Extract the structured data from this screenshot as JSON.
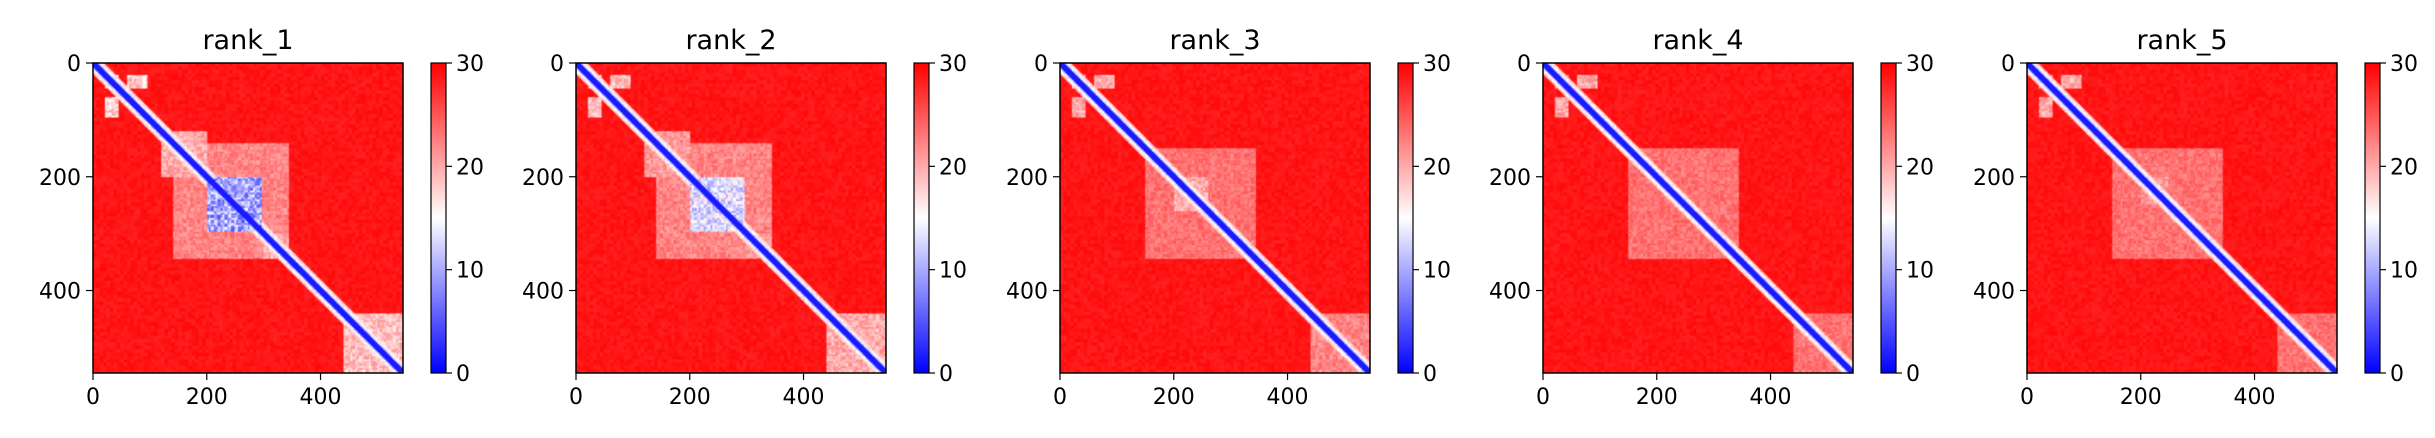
{
  "chart_data": [
    {
      "type": "heatmap",
      "title": "rank_1",
      "xlabel": "",
      "ylabel": "",
      "xlim": [
        0,
        545
      ],
      "ylim": [
        545,
        0
      ],
      "x_ticks": [
        0,
        200,
        400
      ],
      "y_ticks": [
        0,
        200,
        400
      ],
      "colorbar": {
        "min": 0,
        "max": 30,
        "ticks": [
          0,
          10,
          20,
          30
        ],
        "colors": [
          "#0000ff",
          "#ffffff",
          "#ff0000"
        ]
      },
      "n_residues": 545,
      "blue_blocks": [
        [
          200,
          295,
          200,
          295,
          0.9
        ],
        [
          20,
          45,
          20,
          45,
          0.6
        ],
        [
          60,
          95,
          20,
          45,
          0.55
        ],
        [
          20,
          45,
          60,
          95,
          0.55
        ],
        [
          120,
          200,
          120,
          200,
          0.45
        ],
        [
          300,
          345,
          300,
          345,
          0.45
        ],
        [
          440,
          545,
          440,
          545,
          0.5
        ],
        [
          140,
          345,
          140,
          345,
          0.35
        ]
      ]
    },
    {
      "type": "heatmap",
      "title": "rank_2",
      "xlabel": "",
      "ylabel": "",
      "xlim": [
        0,
        545
      ],
      "ylim": [
        545,
        0
      ],
      "x_ticks": [
        0,
        200,
        400
      ],
      "y_ticks": [
        0,
        200,
        400
      ],
      "colorbar": {
        "min": 0,
        "max": 30,
        "ticks": [
          0,
          10,
          20,
          30
        ],
        "colors": [
          "#0000ff",
          "#ffffff",
          "#ff0000"
        ]
      },
      "n_residues": 545,
      "blue_blocks": [
        [
          200,
          295,
          200,
          295,
          0.75
        ],
        [
          20,
          45,
          20,
          45,
          0.55
        ],
        [
          60,
          95,
          20,
          45,
          0.5
        ],
        [
          20,
          45,
          60,
          95,
          0.5
        ],
        [
          120,
          200,
          120,
          200,
          0.4
        ],
        [
          300,
          345,
          300,
          345,
          0.4
        ],
        [
          440,
          545,
          440,
          545,
          0.45
        ],
        [
          140,
          345,
          140,
          345,
          0.35
        ]
      ]
    },
    {
      "type": "heatmap",
      "title": "rank_3",
      "xlabel": "",
      "ylabel": "",
      "xlim": [
        0,
        545
      ],
      "ylim": [
        545,
        0
      ],
      "x_ticks": [
        0,
        200,
        400
      ],
      "y_ticks": [
        0,
        200,
        400
      ],
      "colorbar": {
        "min": 0,
        "max": 30,
        "ticks": [
          0,
          10,
          20,
          30
        ],
        "colors": [
          "#0000ff",
          "#ffffff",
          "#ff0000"
        ]
      },
      "n_residues": 545,
      "blue_blocks": [
        [
          200,
          260,
          200,
          260,
          0.45
        ],
        [
          20,
          45,
          20,
          45,
          0.5
        ],
        [
          60,
          95,
          20,
          45,
          0.45
        ],
        [
          20,
          45,
          60,
          95,
          0.45
        ],
        [
          150,
          345,
          150,
          345,
          0.3
        ],
        [
          440,
          545,
          440,
          545,
          0.35
        ]
      ]
    },
    {
      "type": "heatmap",
      "title": "rank_4",
      "xlabel": "",
      "ylabel": "",
      "xlim": [
        0,
        545
      ],
      "ylim": [
        545,
        0
      ],
      "x_ticks": [
        0,
        200,
        400
      ],
      "y_ticks": [
        0,
        200,
        400
      ],
      "colorbar": {
        "min": 0,
        "max": 30,
        "ticks": [
          0,
          10,
          20,
          30
        ],
        "colors": [
          "#0000ff",
          "#ffffff",
          "#ff0000"
        ]
      },
      "n_residues": 545,
      "blue_blocks": [
        [
          20,
          45,
          20,
          45,
          0.5
        ],
        [
          60,
          95,
          20,
          45,
          0.45
        ],
        [
          20,
          45,
          60,
          95,
          0.45
        ],
        [
          150,
          345,
          150,
          345,
          0.3
        ],
        [
          440,
          545,
          440,
          545,
          0.3
        ]
      ]
    },
    {
      "type": "heatmap",
      "title": "rank_5",
      "xlabel": "",
      "ylabel": "",
      "xlim": [
        0,
        545
      ],
      "ylim": [
        545,
        0
      ],
      "x_ticks": [
        0,
        200,
        400
      ],
      "y_ticks": [
        0,
        200,
        400
      ],
      "colorbar": {
        "min": 0,
        "max": 30,
        "ticks": [
          0,
          10,
          20,
          30
        ],
        "colors": [
          "#0000ff",
          "#ffffff",
          "#ff0000"
        ]
      },
      "n_residues": 545,
      "blue_blocks": [
        [
          200,
          250,
          200,
          250,
          0.4
        ],
        [
          20,
          45,
          20,
          45,
          0.5
        ],
        [
          60,
          95,
          20,
          45,
          0.45
        ],
        [
          20,
          45,
          60,
          95,
          0.45
        ],
        [
          150,
          345,
          150,
          345,
          0.3
        ],
        [
          440,
          545,
          440,
          545,
          0.3
        ]
      ]
    }
  ]
}
